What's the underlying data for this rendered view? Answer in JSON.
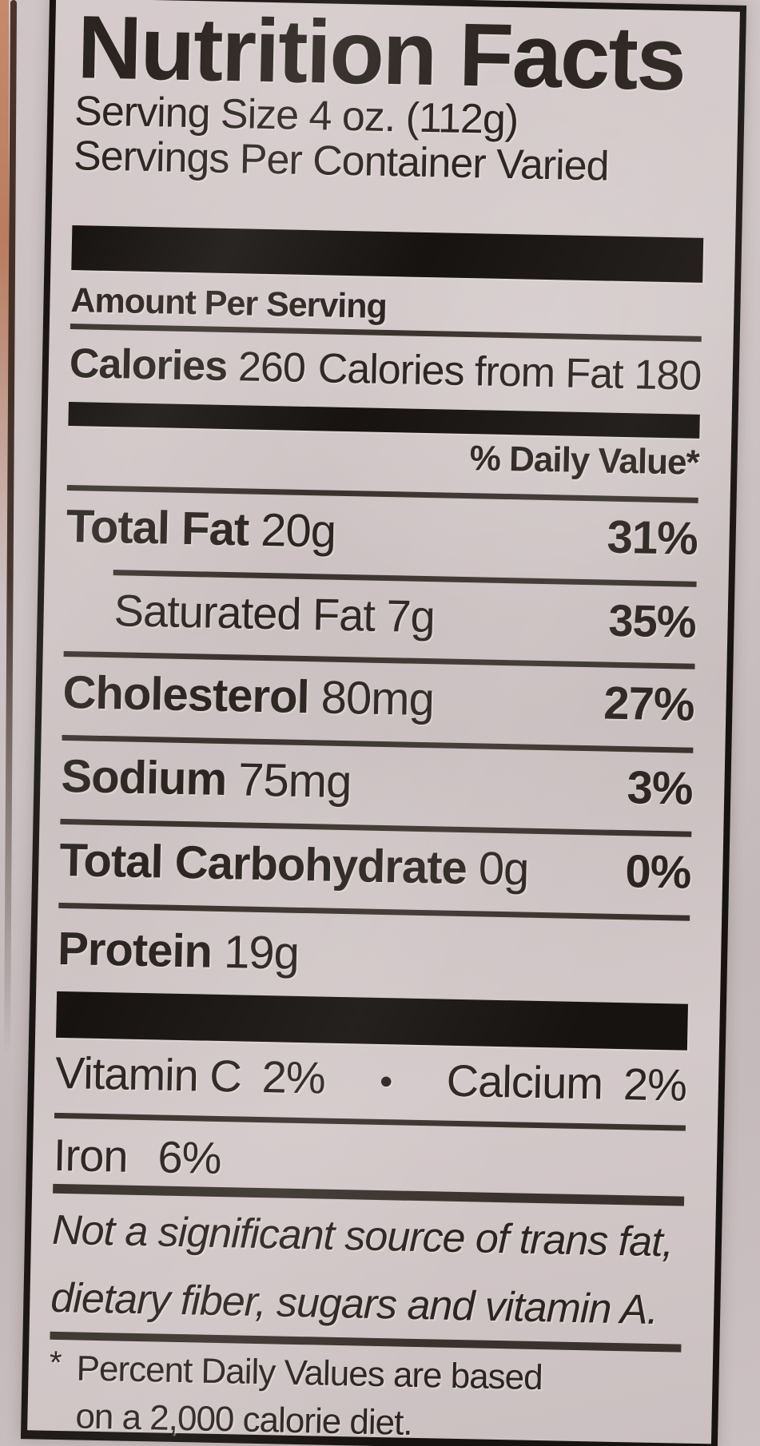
{
  "label": {
    "title": "Nutrition Facts",
    "serving_size": "Serving Size 4 oz. (112g)",
    "servings_per_container": "Servings Per Container Varied",
    "amount_per_serving": "Amount Per Serving",
    "calories_label": "Calories",
    "calories_value": "260",
    "from_fat_label": "Calories from Fat",
    "from_fat_value": "180",
    "daily_value_header": "% Daily Value*",
    "nutrients": [
      {
        "name": "Total Fat",
        "amount": "20g",
        "dv": "31%",
        "indent": false
      },
      {
        "name": "Saturated Fat",
        "amount": "7g",
        "dv": "35%",
        "indent": true
      },
      {
        "name": "Cholesterol",
        "amount": "80mg",
        "dv": "27%",
        "indent": false
      },
      {
        "name": "Sodium",
        "amount": "75mg",
        "dv": "3%",
        "indent": false
      },
      {
        "name": "Total Carbohydrate",
        "amount": "0g",
        "dv": "0%",
        "indent": false
      },
      {
        "name": "Protein",
        "amount": "19g",
        "dv": "",
        "indent": false
      }
    ],
    "micronutrients": {
      "row1_left_label": "Vitamin C",
      "row1_left_value": "2%",
      "bullet": "•",
      "row1_right_label": "Calcium",
      "row1_right_value": "2%",
      "row2_label": "Iron",
      "row2_value": "6%"
    },
    "disclaimer_line1": "Not a significant source of trans fat,",
    "disclaimer_line2": "dietary fiber, sugars and vitamin A.",
    "footnote_marker": "*",
    "footnote_line1": "Percent Daily Values are based",
    "footnote_line2": "on a 2,000 calorie diet."
  },
  "colors": {
    "ink": "#2b2521",
    "bar": "#171310",
    "line": "#3a332d",
    "label-bg": "#d1c6c7",
    "page-bg": "#c9bec0",
    "edge": "#c58a6b",
    "edge-line": "#4a332c"
  }
}
